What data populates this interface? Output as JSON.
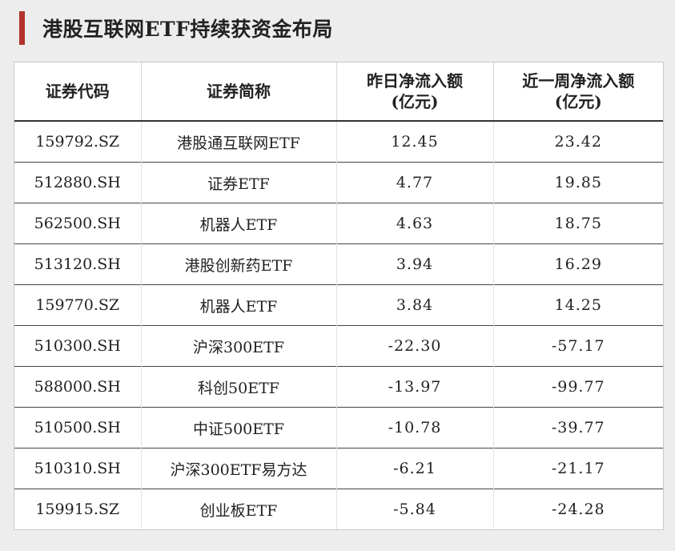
{
  "title": "港股互联网ETF持续获资金布局",
  "colors": {
    "accent": "#b3322c"
  },
  "table": {
    "headers": {
      "code": "证券代码",
      "name": "证券简称",
      "daily": {
        "line1": "昨日净流入额",
        "line2": "(亿元)"
      },
      "weekly": {
        "line1": "近一周净流入额",
        "line2": "(亿元)"
      }
    },
    "rows": [
      {
        "code": "159792.SZ",
        "name": "港股通互联网ETF",
        "daily": "12.45",
        "weekly": "23.42"
      },
      {
        "code": "512880.SH",
        "name": "证券ETF",
        "daily": "4.77",
        "weekly": "19.85"
      },
      {
        "code": "562500.SH",
        "name": "机器人ETF",
        "daily": "4.63",
        "weekly": "18.75"
      },
      {
        "code": "513120.SH",
        "name": "港股创新药ETF",
        "daily": "3.94",
        "weekly": "16.29"
      },
      {
        "code": "159770.SZ",
        "name": "机器人ETF",
        "daily": "3.84",
        "weekly": "14.25"
      },
      {
        "code": "510300.SH",
        "name": "沪深300ETF",
        "daily": "-22.30",
        "weekly": "-57.17"
      },
      {
        "code": "588000.SH",
        "name": "科创50ETF",
        "daily": "-13.97",
        "weekly": "-99.77"
      },
      {
        "code": "510500.SH",
        "name": "中证500ETF",
        "daily": "-10.78",
        "weekly": "-39.77"
      },
      {
        "code": "510310.SH",
        "name": "沪深300ETF易方达",
        "daily": "-6.21",
        "weekly": "-21.17"
      },
      {
        "code": "159915.SZ",
        "name": "创业板ETF",
        "daily": "-5.84",
        "weekly": "-24.28"
      }
    ]
  }
}
